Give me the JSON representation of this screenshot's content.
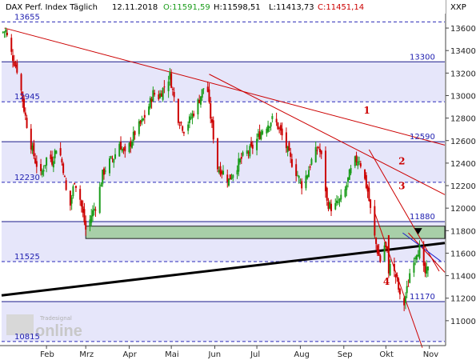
{
  "header": {
    "title": "DAX Perf. Index Täglich",
    "date": "12.11.2018",
    "open": "O:11591,59",
    "high": "H:11598,51",
    "low": "L:11413,73",
    "close": "C:11451,14",
    "symbol": "XXP"
  },
  "watermark": {
    "brand": "Tradesignal",
    "product": "online"
  },
  "chart_data": {
    "type": "candlestick",
    "y_ticks": [
      "13600",
      "13400",
      "13200",
      "13000",
      "12800",
      "12600",
      "12400",
      "12200",
      "12000",
      "11800",
      "11600",
      "11400",
      "11200",
      "11000"
    ],
    "ylim": [
      10760,
      13760
    ],
    "xlim_days": [
      0,
      316
    ],
    "x_ticks": [
      {
        "label": "Feb",
        "day": 32
      },
      {
        "label": "Mrz",
        "day": 60
      },
      {
        "label": "Apr",
        "day": 91
      },
      {
        "label": "Mai",
        "day": 121
      },
      {
        "label": "Jun",
        "day": 152
      },
      {
        "label": "Jul",
        "day": 182
      },
      {
        "label": "Aug",
        "day": 213
      },
      {
        "label": "Sep",
        "day": 244
      },
      {
        "label": "Okt",
        "day": 274
      },
      {
        "label": "Nov",
        "day": 305
      }
    ],
    "levels": [
      {
        "value": 13655,
        "label": "13655",
        "style": "dashed"
      },
      {
        "value": 13300,
        "label": "13300",
        "style": "solid"
      },
      {
        "value": 12945,
        "label": "12945",
        "style": "dashed"
      },
      {
        "value": 12590,
        "label": "12590",
        "style": "solid"
      },
      {
        "value": 12230,
        "label": "12230",
        "style": "dashed"
      },
      {
        "value": 11880,
        "label": "11880",
        "style": "solid"
      },
      {
        "value": 11525,
        "label": "11525",
        "style": "dashed"
      },
      {
        "value": 11170,
        "label": "11170",
        "style": "solid"
      },
      {
        "value": 10815,
        "label": "10815",
        "style": "dashed"
      }
    ],
    "support_zone": [
      11730,
      11840
    ],
    "trendlines": [
      {
        "label": "1",
        "color": "#cc0000",
        "from": [
          2,
          13600
        ],
        "to": [
          316,
          12560
        ]
      },
      {
        "label": "2",
        "color": "#cc0000",
        "from": [
          148,
          13190
        ],
        "to": [
          316,
          12120
        ]
      },
      {
        "label": "3",
        "color": "#cc0000",
        "from": [
          262,
          12520
        ],
        "to": [
          312,
          11440
        ]
      },
      {
        "label": "4",
        "color": "#cc0000",
        "from": [
          266,
          11960
        ],
        "to": [
          300,
          10760
        ]
      },
      {
        "label": "",
        "color": "#cc0000",
        "from": [
          290,
          11780
        ],
        "to": [
          316,
          11430
        ]
      },
      {
        "label": "",
        "color": "#000000",
        "from": [
          0,
          11225
        ],
        "to": [
          316,
          11690
        ]
      },
      {
        "label": "",
        "color": "#2020cc",
        "from": [
          286,
          11780
        ],
        "to": [
          313,
          11530
        ]
      }
    ],
    "anchors": [
      [
        0,
        13560
      ],
      [
        3,
        13580
      ],
      [
        6,
        13410
      ],
      [
        9,
        13300
      ],
      [
        12,
        13200
      ],
      [
        16,
        12880
      ],
      [
        20,
        12610
      ],
      [
        24,
        12420
      ],
      [
        28,
        12290
      ],
      [
        33,
        12480
      ],
      [
        36,
        12420
      ],
      [
        40,
        12580
      ],
      [
        44,
        12350
      ],
      [
        48,
        11950
      ],
      [
        52,
        12250
      ],
      [
        56,
        12080
      ],
      [
        60,
        11810
      ],
      [
        62,
        11850
      ],
      [
        64,
        11940
      ],
      [
        68,
        12050
      ],
      [
        72,
        12300
      ],
      [
        76,
        12400
      ],
      [
        80,
        12450
      ],
      [
        84,
        12580
      ],
      [
        88,
        12470
      ],
      [
        92,
        12580
      ],
      [
        96,
        12700
      ],
      [
        100,
        12760
      ],
      [
        104,
        12870
      ],
      [
        108,
        13020
      ],
      [
        112,
        12990
      ],
      [
        116,
        13080
      ],
      [
        120,
        13180
      ],
      [
        124,
        12910
      ],
      [
        126,
        12800
      ],
      [
        130,
        12700
      ],
      [
        134,
        12780
      ],
      [
        138,
        12880
      ],
      [
        141,
        12970
      ],
      [
        144,
        13070
      ],
      [
        146,
        13180
      ],
      [
        148,
        12900
      ],
      [
        151,
        12640
      ],
      [
        154,
        12360
      ],
      [
        158,
        12320
      ],
      [
        162,
        12250
      ],
      [
        166,
        12340
      ],
      [
        170,
        12420
      ],
      [
        174,
        12490
      ],
      [
        178,
        12520
      ],
      [
        182,
        12610
      ],
      [
        186,
        12700
      ],
      [
        190,
        12750
      ],
      [
        194,
        12800
      ],
      [
        198,
        12700
      ],
      [
        202,
        12580
      ],
      [
        206,
        12430
      ],
      [
        210,
        12320
      ],
      [
        214,
        12210
      ],
      [
        218,
        12310
      ],
      [
        222,
        12460
      ],
      [
        226,
        12540
      ],
      [
        229,
        12410
      ],
      [
        232,
        12050
      ],
      [
        236,
        11990
      ],
      [
        240,
        12050
      ],
      [
        244,
        12110
      ],
      [
        248,
        12300
      ],
      [
        252,
        12420
      ],
      [
        255,
        12440
      ],
      [
        258,
        12300
      ],
      [
        261,
        12150
      ],
      [
        264,
        11900
      ],
      [
        266,
        11740
      ],
      [
        268,
        11620
      ],
      [
        270,
        11530
      ],
      [
        272,
        11700
      ],
      [
        276,
        11580
      ],
      [
        279,
        11450
      ],
      [
        282,
        11360
      ],
      [
        284,
        11200
      ],
      [
        286,
        11080
      ],
      [
        288,
        11220
      ],
      [
        290,
        11330
      ],
      [
        292,
        11520
      ],
      [
        294,
        11560
      ],
      [
        296,
        11620
      ],
      [
        298,
        11640
      ],
      [
        300,
        11470
      ],
      [
        302,
        11420
      ],
      [
        304,
        11450
      ]
    ],
    "special_candles": [
      {
        "day": 276,
        "open": 11760,
        "high": 11760,
        "low": 11380,
        "close": 11420
      }
    ]
  }
}
